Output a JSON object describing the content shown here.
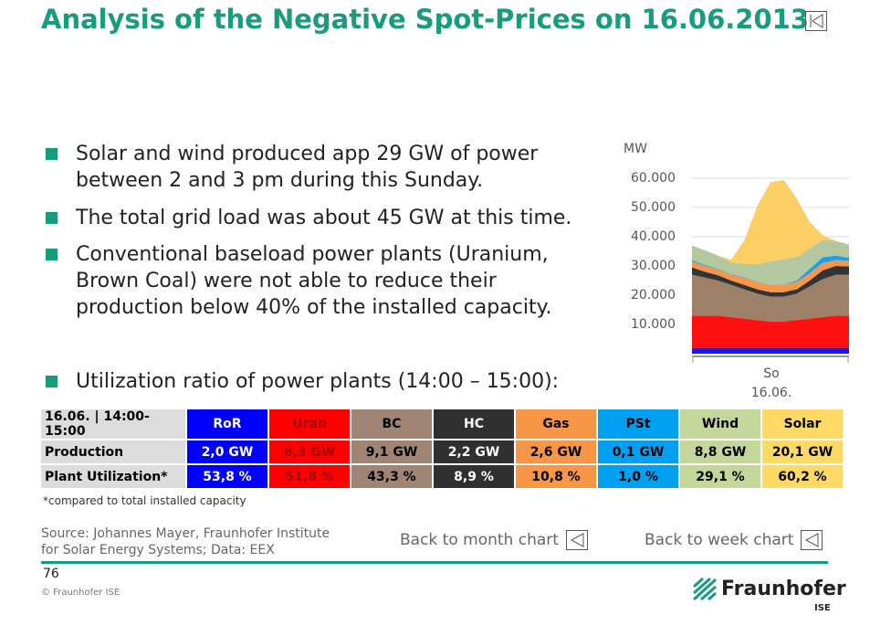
{
  "title": "Analysis of the Negative Spot-Prices on 16.06.2013",
  "bullets": [
    "Solar and wind produced app 29 GW of power between 2 and 3 pm during this Sunday.",
    "The total grid load was about 45 GW at this time.",
    "Conventional baseload power plants (Uranium, Brown Coal) were not able to reduce their production below 40% of the installed capacity.",
    "Utilization ratio of power plants (14:00 – 15:00):"
  ],
  "chart": {
    "type": "area",
    "unit_label": "MW",
    "x_label": [
      "So",
      "16.06."
    ],
    "ylim": [
      0,
      70000
    ],
    "yticks": [
      {
        "value": 10000,
        "label": "10.000"
      },
      {
        "value": 20000,
        "label": "20.000"
      },
      {
        "value": 30000,
        "label": "30.000"
      },
      {
        "value": 40000,
        "label": "40.000"
      },
      {
        "value": 50000,
        "label": "50.000"
      },
      {
        "value": 60000,
        "label": "60.000"
      }
    ],
    "grid": true,
    "series": [
      {
        "name": "RoR",
        "color": "#1a1ae6",
        "values": [
          2000,
          2000,
          2000,
          2000,
          2000,
          2000,
          2000,
          2000,
          2000,
          2000,
          2000,
          2000,
          2000
        ]
      },
      {
        "name": "Uran",
        "color": "#ff1010",
        "values": [
          11000,
          11000,
          11000,
          10500,
          10000,
          9500,
          9000,
          9000,
          9500,
          10000,
          10500,
          11000,
          11000
        ]
      },
      {
        "name": "BC",
        "color": "#9c8068",
        "values": [
          14000,
          13000,
          12000,
          11000,
          10000,
          9000,
          8500,
          8500,
          9000,
          11000,
          13000,
          14000,
          14000
        ]
      },
      {
        "name": "HC",
        "color": "#333333",
        "values": [
          2500,
          2000,
          1800,
          1500,
          1500,
          1500,
          1500,
          1500,
          1500,
          2000,
          3000,
          3000,
          2800
        ]
      },
      {
        "name": "Gas",
        "color": "#f7964a",
        "values": [
          2000,
          2000,
          2000,
          2000,
          2500,
          2500,
          2500,
          2500,
          2500,
          2500,
          2500,
          2000,
          2000
        ]
      },
      {
        "name": "PSt",
        "color": "#1ea0e6",
        "values": [
          500,
          300,
          200,
          200,
          200,
          100,
          100,
          100,
          500,
          1500,
          2000,
          1500,
          1000
        ]
      },
      {
        "name": "Wind",
        "color": "#b4c8a0",
        "values": [
          5000,
          5000,
          4500,
          4000,
          4500,
          6000,
          8000,
          8800,
          8000,
          7000,
          6000,
          5000,
          4500
        ]
      },
      {
        "name": "Solar",
        "color": "#fccf64",
        "values": [
          0,
          0,
          0,
          1000,
          8000,
          20000,
          27000,
          27000,
          20000,
          9000,
          1500,
          0,
          0
        ]
      }
    ]
  },
  "table": {
    "header": [
      "16.06. | 14:00-15:00",
      "RoR",
      "Uran",
      "BC",
      "HC",
      "Gas",
      "PSt",
      "Wind",
      "Solar"
    ],
    "column_colors": [
      "#dcdcdc",
      "#0000ff",
      "#ff0000",
      "#a08575",
      "#303030",
      "#f79646",
      "#00a0f0",
      "#c4d79b",
      "#ffd966"
    ],
    "text_colors": [
      "#000000",
      "#ffffff",
      "#a00000",
      "#000000",
      "#ffffff",
      "#000000",
      "#000000",
      "#000000",
      "#000000"
    ],
    "rows": [
      [
        "Production",
        "2,0 GW",
        "6,3 GW",
        "9,1 GW",
        "2,2 GW",
        "2,6 GW",
        "0,1 GW",
        "8,8 GW",
        "20,1 GW"
      ],
      [
        "Plant Utilization*",
        "53,8 %",
        "51,8 %",
        "43,3 %",
        "8,9 %",
        "10,8 %",
        "1,0 %",
        "29,1 %",
        "60,2 %"
      ]
    ]
  },
  "footnote": "*compared to total installed capacity",
  "source": [
    "Source: Johannes Mayer, Fraunhofer Institute",
    "for Solar Energy Systems; Data: EEX"
  ],
  "links": [
    "Back to month chart",
    "Back to week chart"
  ],
  "page_number": "76",
  "copyright": "© Fraunhofer ISE",
  "logo": "Fraunhofer",
  "logo_sub": "ISE"
}
